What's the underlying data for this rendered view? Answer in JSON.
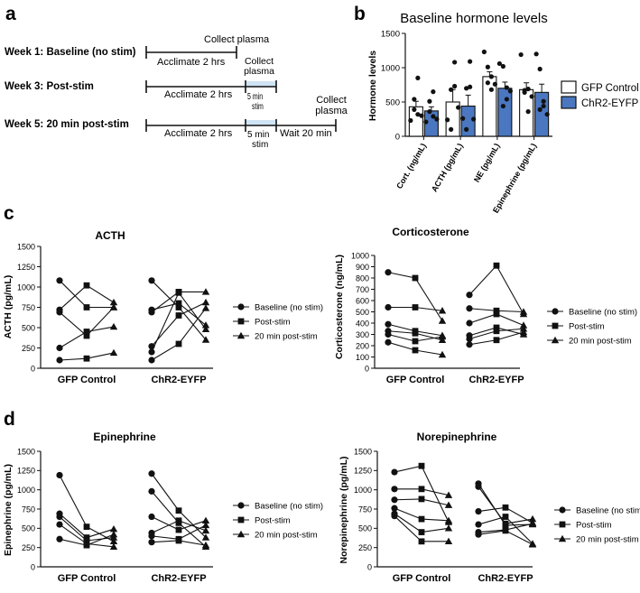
{
  "panels": {
    "a": {
      "letter": "a",
      "rows": [
        {
          "label": "Week 1: Baseline (no stim)",
          "acclimate": "Acclimate 2 hrs",
          "collect": "Collect plasma"
        },
        {
          "label": "Week 3: Post-stim",
          "acclimate": "Acclimate 2 hrs",
          "stim": "5 min stim",
          "collect": "Collect plasma"
        },
        {
          "label": "Week 5: 20 min post-stim",
          "acclimate": "Acclimate 2 hrs",
          "stim": "5 min stim",
          "wait": "Wait 20 min",
          "collect": "Collect plasma"
        }
      ]
    },
    "b": {
      "letter": "b"
    },
    "c": {
      "letter": "c"
    },
    "d": {
      "letter": "d"
    }
  },
  "legend_labels": [
    "Baseline (no stim)",
    "Post-stim",
    "20 min post-stim"
  ],
  "chart_data": [
    {
      "id": "b",
      "type": "bar",
      "title": "Baseline hormone levels",
      "ylabel": "Hormone levels",
      "ylim": [
        0,
        1500
      ],
      "yticks": [
        0,
        500,
        1000,
        1500
      ],
      "categories": [
        "Cort. (ng/mL)",
        "ACTH (pg/mL)",
        "NE (pg/mL)",
        "Epinephrine (pg/mL)"
      ],
      "legend": "right",
      "series": [
        {
          "name": "GFP Control",
          "color": "#ffffff",
          "values": [
            430,
            500,
            870,
            680
          ],
          "errors": [
            80,
            180,
            70,
            100
          ],
          "points": [
            [
              230,
              390,
              320,
              540,
              850,
              300
            ],
            [
              240,
              100,
              730,
              680,
              1080,
              420
            ],
            [
              1230,
              1010,
              870,
              780,
              680,
              760
            ],
            [
              1190,
              670,
              690,
              640,
              360,
              580
            ]
          ]
        },
        {
          "name": "ChR2-EYFP",
          "color": "#4a77c0",
          "values": [
            370,
            440,
            700,
            640
          ],
          "errors": [
            60,
            160,
            90,
            120
          ],
          "points": [
            [
              210,
              360,
              290,
              510,
              650,
              250
            ],
            [
              260,
              100,
              720,
              700,
              1090,
              250
            ],
            [
              1060,
              1020,
              710,
              440,
              540,
              660
            ],
            [
              1200,
              980,
              440,
              390,
              510,
              320
            ]
          ]
        }
      ]
    },
    {
      "id": "c1",
      "type": "line",
      "title": "ACTH",
      "ylabel": "ACTH (pg/mL)",
      "ylim": [
        0,
        1500
      ],
      "yticks": [
        0,
        250,
        500,
        750,
        1000,
        1250,
        1500
      ],
      "groups": [
        "GFP Control",
        "ChR2-EYFP"
      ],
      "series": [
        {
          "group": "GFP Control",
          "values": [
            1080,
            750,
            750
          ]
        },
        {
          "group": "GFP Control",
          "values": [
            720,
            1020,
            810
          ]
        },
        {
          "group": "GFP Control",
          "values": [
            690,
            400,
            750
          ]
        },
        {
          "group": "GFP Control",
          "values": [
            250,
            450,
            510
          ]
        },
        {
          "group": "GFP Control",
          "values": [
            100,
            120,
            190
          ]
        },
        {
          "group": "ChR2-EYFP",
          "values": [
            1080,
            750,
            350
          ]
        },
        {
          "group": "ChR2-EYFP",
          "values": [
            720,
            800,
            530
          ]
        },
        {
          "group": "ChR2-EYFP",
          "values": [
            690,
            940,
            940
          ]
        },
        {
          "group": "ChR2-EYFP",
          "values": [
            270,
            650,
            810
          ]
        },
        {
          "group": "ChR2-EYFP",
          "values": [
            200,
            930,
            480
          ]
        },
        {
          "group": "ChR2-EYFP",
          "values": [
            100,
            300,
            740
          ]
        }
      ]
    },
    {
      "id": "c2",
      "type": "line",
      "title": "Corticosterone",
      "ylabel": "Corticosterone (ng/mL)",
      "ylim": [
        0,
        1000
      ],
      "yticks": [
        0,
        100,
        200,
        300,
        400,
        500,
        600,
        700,
        800,
        900,
        1000
      ],
      "groups": [
        "GFP Control",
        "ChR2-EYFP"
      ],
      "series": [
        {
          "group": "GFP Control",
          "values": [
            850,
            800,
            420
          ]
        },
        {
          "group": "GFP Control",
          "values": [
            540,
            540,
            510
          ]
        },
        {
          "group": "GFP Control",
          "values": [
            390,
            330,
            290
          ]
        },
        {
          "group": "GFP Control",
          "values": [
            330,
            310,
            250
          ]
        },
        {
          "group": "GFP Control",
          "values": [
            300,
            240,
            280
          ]
        },
        {
          "group": "GFP Control",
          "values": [
            230,
            160,
            120
          ]
        },
        {
          "group": "ChR2-EYFP",
          "values": [
            650,
            910,
            480
          ]
        },
        {
          "group": "ChR2-EYFP",
          "values": [
            530,
            510,
            500
          ]
        },
        {
          "group": "ChR2-EYFP",
          "values": [
            400,
            480,
            380
          ]
        },
        {
          "group": "ChR2-EYFP",
          "values": [
            290,
            360,
            300
          ]
        },
        {
          "group": "ChR2-EYFP",
          "values": [
            260,
            330,
            350
          ]
        },
        {
          "group": "ChR2-EYFP",
          "values": [
            210,
            250,
            320
          ]
        }
      ]
    },
    {
      "id": "d1",
      "type": "line",
      "title": "Epinephrine",
      "ylabel": "Epinephrine (pg/mL)",
      "ylim": [
        0,
        1500
      ],
      "yticks": [
        0,
        250,
        500,
        750,
        1000,
        1250,
        1500
      ],
      "groups": [
        "GFP Control",
        "ChR2-EYFP"
      ],
      "series": [
        {
          "group": "GFP Control",
          "values": [
            1190,
            520,
            330
          ]
        },
        {
          "group": "GFP Control",
          "values": [
            690,
            380,
            490
          ]
        },
        {
          "group": "GFP Control",
          "values": [
            650,
            340,
            380
          ]
        },
        {
          "group": "GFP Control",
          "values": [
            550,
            300,
            260
          ]
        },
        {
          "group": "GFP Control",
          "values": [
            360,
            280,
            420
          ]
        },
        {
          "group": "ChR2-EYFP",
          "values": [
            1210,
            730,
            380
          ]
        },
        {
          "group": "ChR2-EYFP",
          "values": [
            980,
            570,
            260
          ]
        },
        {
          "group": "ChR2-EYFP",
          "values": [
            650,
            480,
            600
          ]
        },
        {
          "group": "ChR2-EYFP",
          "values": [
            440,
            600,
            470
          ]
        },
        {
          "group": "ChR2-EYFP",
          "values": [
            400,
            360,
            540
          ]
        },
        {
          "group": "ChR2-EYFP",
          "values": [
            320,
            340,
            280
          ]
        }
      ]
    },
    {
      "id": "d2",
      "type": "line",
      "title": "Norepinephrine",
      "ylabel": "Norepinephrine (pg/mL)",
      "ylim": [
        0,
        1500
      ],
      "yticks": [
        0,
        250,
        500,
        750,
        1000,
        1250,
        1500
      ],
      "groups": [
        "GFP Control",
        "ChR2-EYFP"
      ],
      "series": [
        {
          "group": "GFP Control",
          "values": [
            1230,
            1310,
            580
          ]
        },
        {
          "group": "GFP Control",
          "values": [
            1010,
            1010,
            930
          ]
        },
        {
          "group": "GFP Control",
          "values": [
            870,
            880,
            800
          ]
        },
        {
          "group": "GFP Control",
          "values": [
            760,
            620,
            600
          ]
        },
        {
          "group": "GFP Control",
          "values": [
            690,
            450,
            500
          ]
        },
        {
          "group": "GFP Control",
          "values": [
            660,
            330,
            330
          ]
        },
        {
          "group": "ChR2-EYFP",
          "values": [
            1080,
            540,
            550
          ]
        },
        {
          "group": "ChR2-EYFP",
          "values": [
            1040,
            560,
            620
          ]
        },
        {
          "group": "ChR2-EYFP",
          "values": [
            720,
            770,
            570
          ]
        },
        {
          "group": "ChR2-EYFP",
          "values": [
            550,
            650,
            300
          ]
        },
        {
          "group": "ChR2-EYFP",
          "values": [
            450,
            480,
            560
          ]
        },
        {
          "group": "ChR2-EYFP",
          "values": [
            420,
            470,
            290
          ]
        }
      ]
    }
  ]
}
